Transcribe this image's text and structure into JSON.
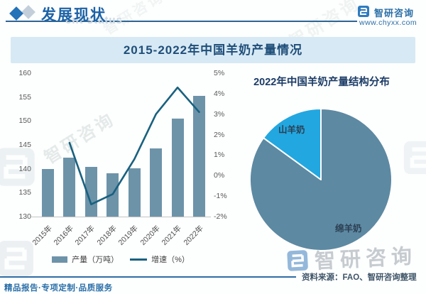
{
  "header": {
    "title": "发展现状",
    "watermark_subtitle": "ent status",
    "brand": "智研咨询",
    "website": "www.chyxx.com"
  },
  "banner": {
    "title": "2015-2022年中国羊奶产量情况"
  },
  "chart_data": [
    {
      "type": "bar",
      "title": "2015-2022年中国羊奶产量情况",
      "categories": [
        "2015年",
        "2016年",
        "2017年",
        "2018年",
        "2019年",
        "2020年",
        "2021年",
        "2022年"
      ],
      "series": [
        {
          "name": "产量（万吨）",
          "type": "bar",
          "axis": "left",
          "values": [
            140.0,
            142.3,
            140.4,
            139.0,
            140.1,
            144.3,
            150.5,
            155.2
          ]
        },
        {
          "name": "增速（%）",
          "type": "line",
          "axis": "right",
          "values": [
            null,
            1.6,
            -1.4,
            -0.9,
            0.8,
            3.0,
            4.3,
            3.1
          ]
        }
      ],
      "left_axis": {
        "min": 130,
        "max": 160,
        "ticks": [
          "160",
          "155",
          "150",
          "145",
          "140",
          "135",
          "130"
        ]
      },
      "right_axis": {
        "min": -2,
        "max": 5,
        "ticks": [
          "5%",
          "4%",
          "3%",
          "2%",
          "1%",
          "0%",
          "-1%",
          "-2%"
        ]
      },
      "legend": [
        "产量（万吨）",
        "增速（%）"
      ],
      "legend_position": "bottom",
      "grid": false
    },
    {
      "type": "pie",
      "title": "2022年中国羊奶产量结构分布",
      "slices": [
        {
          "label": "绵羊奶",
          "value": 85,
          "color": "#5d89a2"
        },
        {
          "label": "山羊奶",
          "value": 15,
          "color": "#22a7e0"
        }
      ]
    }
  ],
  "footer": {
    "source": "资料来源：FAO、智研咨询整理",
    "tagline": "精品报告·专项定制·品质服务"
  },
  "watermark": {
    "brand": "智研咨询"
  },
  "colors": {
    "bar": "#6d93a9",
    "line": "#19617f",
    "accent": "#2a6fa8",
    "banner_bg": "#d7e9f4",
    "title_text": "#1f4e79"
  }
}
